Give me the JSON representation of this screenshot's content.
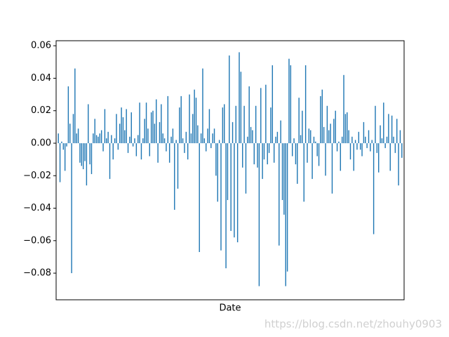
{
  "chart_data": {
    "type": "bar",
    "xlabel": "Date",
    "watermark": "https://blog.csdn.net/zhouhy0903",
    "color": "#1f77b4",
    "ylim": [
      -0.0964,
      0.0631
    ],
    "yticks": [
      {
        "value": -0.08,
        "label": "−0.08"
      },
      {
        "value": -0.06,
        "label": "−0.06"
      },
      {
        "value": -0.04,
        "label": "−0.04"
      },
      {
        "value": -0.02,
        "label": "−0.02"
      },
      {
        "value": 0,
        "label": "0.00"
      },
      0.02,
      0.04,
      0.06
    ],
    "categories": [
      null,
      null,
      null,
      null,
      null,
      null,
      null,
      null,
      null,
      null,
      null,
      null,
      null,
      null,
      null,
      null,
      null,
      null,
      null,
      null,
      null,
      null,
      null,
      null,
      null,
      null,
      null,
      null,
      null,
      null,
      null,
      null,
      null,
      null,
      null,
      null,
      null,
      null,
      null,
      null,
      null,
      null,
      null,
      null,
      null,
      null,
      null,
      null,
      null,
      null,
      null,
      null,
      null,
      null,
      null,
      null,
      null,
      null,
      null,
      null,
      null,
      null,
      null,
      null,
      null,
      null,
      null,
      null,
      null,
      null,
      null,
      null,
      null,
      null,
      null,
      null,
      null,
      null,
      null,
      null,
      null,
      null,
      null,
      null,
      null,
      null,
      null,
      null,
      null,
      null,
      null,
      null,
      null,
      null,
      null,
      null,
      null,
      null,
      null,
      null,
      null,
      null,
      null,
      null,
      null,
      null,
      null,
      null,
      null,
      null,
      null,
      null,
      null,
      null,
      null,
      null,
      null,
      null,
      null,
      null,
      null,
      null,
      null,
      null,
      null,
      null,
      null,
      null,
      null,
      null,
      null,
      null,
      null,
      null,
      null,
      null,
      null,
      null,
      null,
      null,
      null,
      null,
      null,
      null,
      null,
      null,
      null,
      null,
      null,
      null,
      null,
      null,
      null,
      null,
      null,
      null,
      null,
      null,
      null,
      null,
      null,
      null,
      null,
      null,
      null,
      null,
      null,
      null,
      null,
      null,
      null,
      null,
      null,
      null,
      null,
      null,
      null,
      null,
      null,
      null,
      null,
      null,
      null,
      null,
      null,
      null,
      null,
      null,
      null,
      null,
      null,
      null,
      null,
      null,
      null,
      null,
      null,
      null,
      null,
      null,
      null,
      null,
      null,
      null,
      null,
      null,
      null,
      null
    ],
    "values": [
      0.006,
      -0.024,
      0.001,
      -0.004,
      -0.017,
      -0.002,
      0.035,
      0.012,
      -0.08,
      0.018,
      0.046,
      0.006,
      0.009,
      -0.012,
      -0.014,
      -0.016,
      -0.011,
      -0.026,
      0.024,
      -0.013,
      -0.019,
      0.006,
      0.015,
      0.005,
      0.004,
      0.006,
      0.008,
      -0.005,
      0.021,
      0.003,
      0.007,
      -0.022,
      0.005,
      -0.01,
      0.003,
      0.018,
      -0.004,
      0.012,
      0.022,
      0.016,
      0.008,
      0.021,
      -0.006,
      0.004,
      0.019,
      -0.002,
      0.003,
      -0.008,
      0.005,
      0.025,
      -0.01,
      0.003,
      0.015,
      0.025,
      0.009,
      -0.008,
      0.019,
      0.02,
      0.012,
      0.027,
      -0.012,
      0.013,
      0.024,
      0.006,
      0.003,
      -0.005,
      0.029,
      -0.012,
      0.004,
      0.009,
      -0.041,
      0.002,
      -0.028,
      0.022,
      0.029,
      0.003,
      -0.006,
      0.007,
      -0.01,
      0.03,
      0.006,
      0.018,
      0.033,
      0.028,
      0.011,
      -0.067,
      0.006,
      0.046,
      0.003,
      -0.005,
      0.009,
      0.021,
      -0.003,
      0.006,
      0.009,
      -0.02,
      -0.036,
      0.002,
      -0.066,
      0.022,
      0.024,
      -0.077,
      -0.035,
      0.054,
      -0.054,
      0.013,
      -0.058,
      0.023,
      -0.061,
      0.056,
      0.044,
      -0.015,
      0.023,
      -0.031,
      0.004,
      0.035,
      0.01,
      0.008,
      -0.013,
      0.023,
      -0.015,
      -0.088,
      0.034,
      -0.022,
      -0.01,
      0.036,
      -0.013,
      -0.006,
      0.022,
      0.048,
      -0.012,
      0.004,
      0.007,
      -0.063,
      0.014,
      -0.035,
      -0.044,
      -0.088,
      -0.079,
      0.052,
      0.048,
      -0.008,
      0.003,
      -0.013,
      -0.025,
      0.028,
      0.005,
      0.02,
      -0.036,
      0.048,
      -0.012,
      0.009,
      0.008,
      -0.022,
      0.004,
      0.001,
      -0.008,
      -0.014,
      0.029,
      0.033,
      0.01,
      -0.02,
      0.023,
      0.008,
      0.012,
      -0.031,
      0.015,
      0.02,
      -0.005,
      0.001,
      -0.017,
      0.004,
      0.042,
      0.018,
      0.019,
      0.008,
      -0.01,
      0.004,
      -0.017,
      0.002,
      -0.004,
      0.007,
      -0.004,
      -0.008,
      0.013,
      0.004,
      -0.003,
      0.008,
      -0.005,
      0.002,
      -0.056,
      0.023,
      -0.006,
      -0.018,
      0.011,
      0.003,
      0.025,
      -0.003,
      0.004,
      0.018,
      -0.017,
      0.017,
      0.004,
      -0.006,
      0.015,
      -0.026,
      0.008,
      -0.009
    ]
  }
}
